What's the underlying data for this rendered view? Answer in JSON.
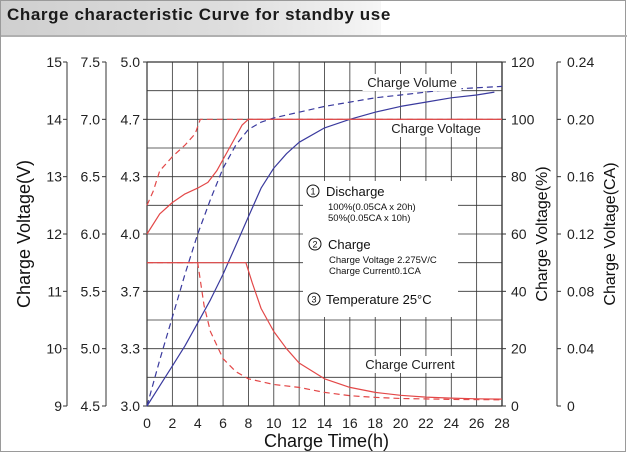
{
  "title": "Charge characteristic Curve for standby use",
  "chart_data": {
    "type": "line",
    "title": "Charge characteristic Curve for standby use",
    "xlabel": "Charge Time(h)",
    "xlim": [
      0,
      28
    ],
    "x_ticks": [
      "0",
      "2",
      "4",
      "6",
      "8",
      "10",
      "12",
      "14",
      "16",
      "18",
      "20",
      "22",
      "24",
      "26",
      "28"
    ],
    "left_axes": [
      {
        "label": "Charge Voltage(V)",
        "ticks": [
          "9",
          "10",
          "11",
          "12",
          "13",
          "14",
          "15"
        ],
        "range": [
          9,
          15
        ]
      },
      {
        "label": "",
        "ticks": [
          "4.5",
          "5.0",
          "5.5",
          "6.0",
          "6.5",
          "7.0",
          "7.5"
        ],
        "range": [
          4.5,
          7.5
        ]
      },
      {
        "label": "",
        "ticks": [
          "3.0",
          "3.3",
          "3.7",
          "4.0",
          "4.3",
          "4.7",
          "5.0"
        ],
        "range": [
          3.0,
          5.0
        ]
      }
    ],
    "right_axes": [
      {
        "label": "Charge Voltage(%)",
        "ticks": [
          "0",
          "20",
          "40",
          "60",
          "80",
          "100",
          "120"
        ],
        "range": [
          0,
          120
        ]
      },
      {
        "label": "Charge Voltage(CA)",
        "ticks": [
          "0",
          "0.04",
          "0.08",
          "0.12",
          "0.16",
          "0.20",
          "0.24"
        ],
        "range": [
          0,
          0.24
        ]
      }
    ],
    "grid": true,
    "series": [
      {
        "name": "Charge Volume",
        "axis": "percent",
        "style": "solid",
        "color": "#3a3a9e",
        "x": [
          0,
          1,
          2,
          3,
          4,
          5,
          6,
          7,
          8,
          9,
          10,
          11,
          12,
          14,
          16,
          18,
          20,
          22,
          24,
          26,
          27.4
        ],
        "y": [
          0,
          7,
          14,
          21,
          29,
          37,
          46,
          56,
          66,
          76,
          83,
          88,
          92,
          97,
          100,
          102.5,
          104.5,
          106,
          107.5,
          108.5,
          109.5
        ]
      },
      {
        "name": "Charge Volume",
        "axis": "percent",
        "style": "dashed",
        "color": "#3a3a9e",
        "x": [
          0,
          1,
          2,
          3,
          4,
          5,
          6,
          7,
          8,
          9,
          10,
          11,
          12,
          14,
          16,
          18,
          20,
          22,
          24,
          26,
          28
        ],
        "y": [
          0,
          16,
          31,
          46,
          60,
          72,
          83,
          91,
          96.5,
          99,
          100.5,
          101.5,
          102.5,
          104.5,
          106,
          107.5,
          108.5,
          109.5,
          110.5,
          111,
          111.5
        ]
      },
      {
        "name": "Charge Voltage",
        "axis": "volt",
        "style": "solid",
        "color": "#e34848",
        "x": [
          0,
          1,
          2,
          3,
          4,
          4.8,
          5.5,
          6.5,
          7.5,
          8,
          10,
          14,
          20,
          28
        ],
        "y": [
          12.0,
          12.35,
          12.55,
          12.7,
          12.8,
          12.9,
          13.1,
          13.5,
          13.9,
          14.0,
          14.0,
          14.0,
          14.0,
          14.0
        ]
      },
      {
        "name": "Charge Voltage",
        "axis": "volt",
        "style": "dashed",
        "color": "#e34848",
        "x": [
          0,
          0.5,
          1,
          2,
          3,
          3.8,
          4.2,
          5,
          8,
          14,
          20,
          28
        ],
        "y": [
          12.5,
          12.75,
          13.1,
          13.35,
          13.55,
          13.75,
          14.0,
          14.0,
          14.0,
          14.0,
          14.0,
          14.0
        ]
      },
      {
        "name": "Charge Current",
        "axis": "ca",
        "style": "solid",
        "color": "#e34848",
        "x": [
          0,
          4,
          7.8,
          8.3,
          9,
          10,
          11,
          12,
          14,
          16,
          18,
          20,
          22,
          24,
          26,
          28
        ],
        "y": [
          0.1,
          0.1,
          0.1,
          0.086,
          0.068,
          0.052,
          0.04,
          0.03,
          0.019,
          0.013,
          0.0095,
          0.0075,
          0.0062,
          0.0055,
          0.005,
          0.0048
        ]
      },
      {
        "name": "Charge Current",
        "axis": "ca",
        "style": "dashed",
        "color": "#e34848",
        "x": [
          0,
          4,
          4.5,
          5,
          6,
          7,
          8,
          10,
          12,
          14,
          16,
          18,
          20,
          24,
          28
        ],
        "y": [
          0.1,
          0.1,
          0.07,
          0.052,
          0.033,
          0.024,
          0.019,
          0.015,
          0.013,
          0.0095,
          0.0072,
          0.006,
          0.0052,
          0.0046,
          0.0043
        ]
      }
    ],
    "curve_labels": [
      "Charge Volume",
      "Charge Voltage",
      "Charge Current"
    ],
    "legend": {
      "item1": {
        "title": "Discharge",
        "lines": [
          "100%(0.05CA x 20h)",
          "50%(0.05CA x 10h)"
        ]
      },
      "item2": {
        "title": "Charge",
        "lines": [
          "Charge Voltage 2.275V/C",
          "Charge Current0.1CA"
        ]
      },
      "item3": {
        "title": "Temperature 25°C",
        "lines": []
      }
    }
  }
}
